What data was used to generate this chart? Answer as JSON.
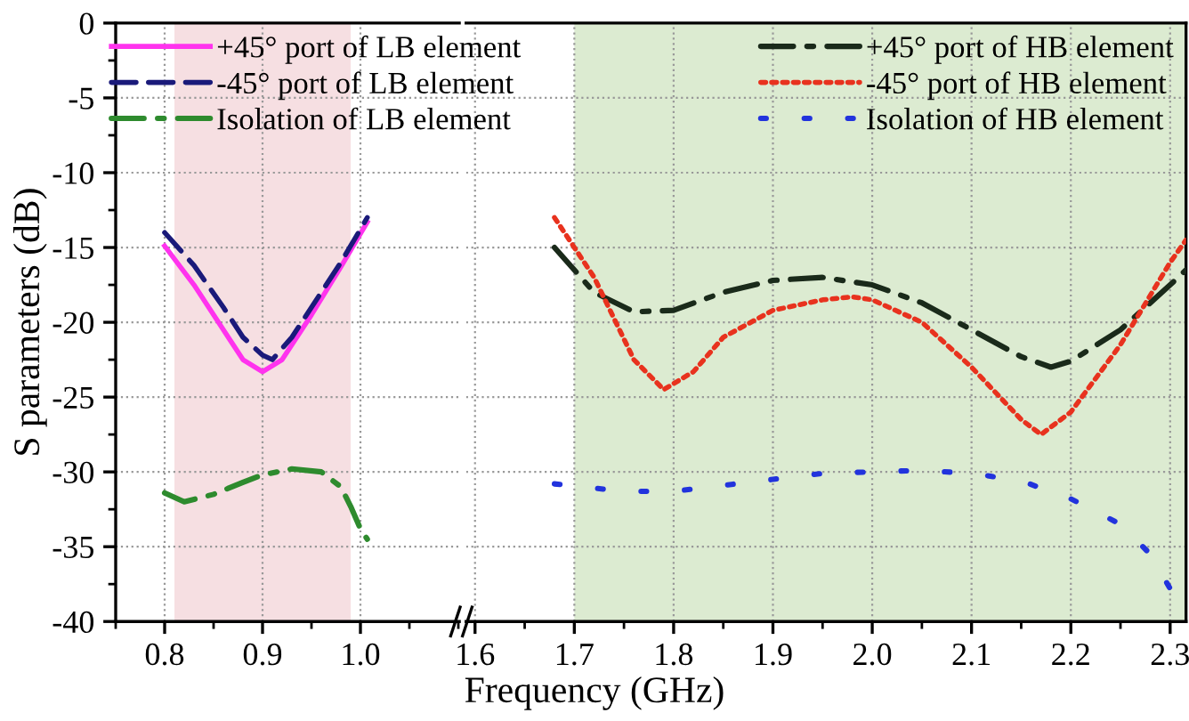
{
  "chart_data": [
    {
      "type": "line",
      "xlabel": "Frequency (GHz)",
      "ylabel": "S parameters (dB)",
      "xlim": [
        0.75,
        1.101
      ],
      "xticks": [
        0.8,
        {
          "value": 0.9,
          "label": "0.9"
        },
        {
          "value": 1.0,
          "label": "1.0"
        }
      ],
      "ylim": [
        -40,
        0
      ],
      "yticks": [
        0,
        -5,
        -10,
        -15,
        -20,
        -25,
        -30,
        -35,
        -40
      ],
      "grid": true,
      "legend": "top right",
      "tick_labels": "xy",
      "bands": [
        {
          "axis": "x",
          "from": 0.81,
          "to": 0.99,
          "color": "#f6dfe2"
        }
      ],
      "series": [
        {
          "name": "+45° port of LB element",
          "color": "#ff33ee",
          "line_style": "solid",
          "x": [
            0.8,
            0.83,
            0.86,
            0.88,
            0.9,
            0.92,
            0.95,
            0.98,
            1.007
          ],
          "values": [
            -14.9,
            -17.5,
            -20.5,
            -22.5,
            -23.3,
            -22.5,
            -19.5,
            -16.3,
            -13.3
          ]
        },
        {
          "name": "-45° port of LB element",
          "color": "#1a1a7a",
          "line_style": "dashed",
          "x": [
            0.8,
            0.83,
            0.86,
            0.88,
            0.9,
            0.91,
            0.93,
            0.96,
            0.98,
            1.007
          ],
          "values": [
            -14.0,
            -16.2,
            -19.0,
            -21.0,
            -22.2,
            -22.5,
            -21.0,
            -18.0,
            -16.0,
            -13.0
          ]
        },
        {
          "name": "Isolation of LB element",
          "color": "#2e8b2e",
          "line_style": "dashdot",
          "x": [
            0.8,
            0.82,
            0.85,
            0.88,
            0.9,
            0.93,
            0.96,
            0.98,
            0.99,
            1.0,
            1.007
          ],
          "values": [
            -31.4,
            -32.0,
            -31.5,
            -30.7,
            -30.2,
            -29.8,
            -30.0,
            -31.0,
            -32.3,
            -33.8,
            -34.5
          ]
        }
      ]
    },
    {
      "type": "line",
      "xlim": [
        1.591,
        2.316
      ],
      "xticks": [
        1.6,
        1.7,
        1.8,
        1.9,
        {
          "value": 2.0,
          "label": "2.0"
        },
        2.1,
        2.2,
        2.3
      ],
      "ylim": [
        -40,
        0
      ],
      "yticks": [
        0,
        -5,
        -10,
        -15,
        -20,
        -25,
        -30,
        -35,
        -40
      ],
      "grid": true,
      "legend": "top right",
      "tick_labels": "x",
      "bands": [
        {
          "axis": "x",
          "from": 1.7,
          "to": 2.316,
          "color": "#dcebd1"
        }
      ],
      "series": [
        {
          "name": "+45° port of HB element",
          "color": "#1a2a1a",
          "line_style": "dashdot",
          "x": [
            1.68,
            1.72,
            1.76,
            1.8,
            1.85,
            1.9,
            1.95,
            2.0,
            2.05,
            2.1,
            2.15,
            2.18,
            2.2,
            2.25,
            2.3,
            2.316
          ],
          "values": [
            -15.0,
            -18.0,
            -19.3,
            -19.2,
            -18.0,
            -17.2,
            -17.0,
            -17.5,
            -18.7,
            -20.5,
            -22.3,
            -23.0,
            -22.6,
            -20.5,
            -17.5,
            -16.5
          ]
        },
        {
          "name": "-45° port of HB element",
          "color": "#e8321e",
          "line_style": "dotted",
          "x": [
            1.68,
            1.72,
            1.76,
            1.79,
            1.82,
            1.85,
            1.9,
            1.95,
            1.98,
            2.0,
            2.05,
            2.1,
            2.15,
            2.17,
            2.2,
            2.25,
            2.3,
            2.316
          ],
          "values": [
            -13.0,
            -17.0,
            -22.5,
            -24.5,
            -23.3,
            -21.0,
            -19.2,
            -18.5,
            -18.3,
            -18.5,
            -20.0,
            -23.0,
            -26.5,
            -27.5,
            -26.0,
            -21.5,
            -16.0,
            -14.5
          ]
        },
        {
          "name": "Isolation of HB element",
          "color": "#2233dd",
          "line_style": "sparse_dots",
          "x": [
            1.68,
            1.75,
            1.8,
            1.85,
            1.9,
            1.95,
            2.0,
            2.05,
            2.1,
            2.15,
            2.2,
            2.25,
            2.28,
            2.3
          ],
          "values": [
            -30.8,
            -31.3,
            -31.3,
            -30.9,
            -30.5,
            -30.1,
            -30.0,
            -29.9,
            -30.1,
            -30.6,
            -31.8,
            -33.5,
            -35.5,
            -37.8
          ]
        }
      ]
    }
  ]
}
